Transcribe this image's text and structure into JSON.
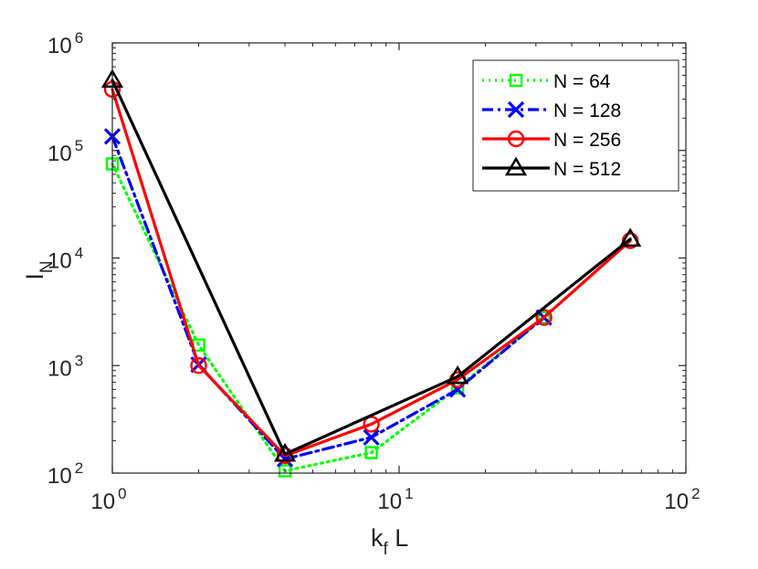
{
  "chart_data": {
    "type": "line",
    "xscale": "log",
    "yscale": "log",
    "xlim": [
      1,
      100
    ],
    "ylim": [
      100,
      1000000
    ],
    "x_ticks": [
      {
        "base": "10",
        "exp": "0",
        "value": 1
      },
      {
        "base": "10",
        "exp": "1",
        "value": 10
      },
      {
        "base": "10",
        "exp": "2",
        "value": 100
      }
    ],
    "y_ticks": [
      {
        "base": "10",
        "exp": "2",
        "value": 100
      },
      {
        "base": "10",
        "exp": "3",
        "value": 1000
      },
      {
        "base": "10",
        "exp": "4",
        "value": 10000
      },
      {
        "base": "10",
        "exp": "5",
        "value": 100000
      },
      {
        "base": "10",
        "exp": "6",
        "value": 1000000
      }
    ],
    "xlabel": {
      "main": "k",
      "sub": "f",
      "rest": " L"
    },
    "ylabel": {
      "main": "I",
      "sub": "N"
    },
    "legend_position": "top-right",
    "series": [
      {
        "name": "N = 64",
        "color": "#00ff00",
        "dash": "dotted",
        "marker": "square",
        "x": [
          1,
          2,
          4,
          8,
          16,
          32
        ],
        "y": [
          75000,
          1550,
          105,
          155,
          620,
          2800
        ]
      },
      {
        "name": "N = 128",
        "color": "#0000ff",
        "dash": "dashdot",
        "marker": "x",
        "x": [
          1,
          2,
          4,
          8,
          16,
          32
        ],
        "y": [
          135000,
          1020,
          135,
          215,
          600,
          2800
        ]
      },
      {
        "name": "N = 256",
        "color": "#ff0000",
        "dash": "solid",
        "marker": "circle",
        "x": [
          1,
          2,
          4,
          8,
          16,
          32,
          64
        ],
        "y": [
          370000,
          1000,
          145,
          285,
          740,
          2800,
          14500
        ]
      },
      {
        "name": "N = 512",
        "color": "#000000",
        "dash": "solid",
        "marker": "triangle",
        "x": [
          1,
          4,
          16,
          64
        ],
        "y": [
          450000,
          150,
          790,
          15000
        ]
      }
    ]
  }
}
